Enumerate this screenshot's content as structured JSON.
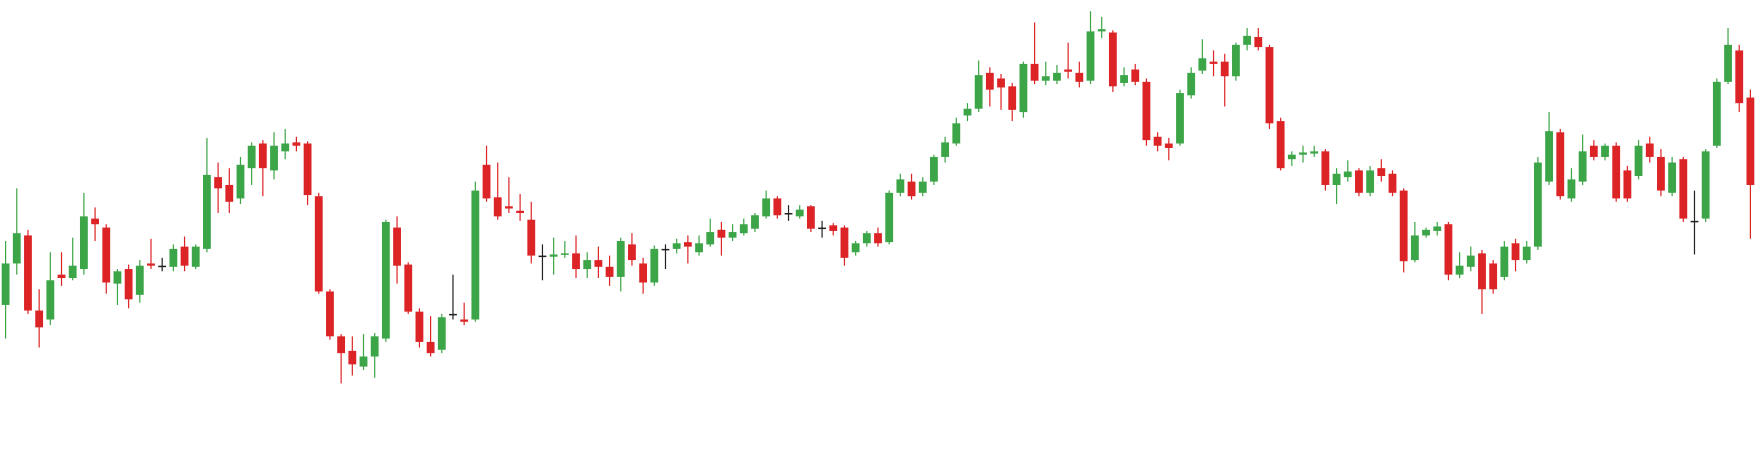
{
  "chart_data": {
    "type": "candlestick",
    "ylim": [
      0,
      413
    ],
    "up_color": "#3ca547",
    "down_color": "#dc2427",
    "doji_color": "#222222",
    "open": [
      141,
      178,
      203,
      136,
      128,
      168,
      165,
      173,
      218,
      210,
      160,
      173,
      150,
      178,
      176,
      175,
      193,
      175,
      191,
      255,
      248,
      236,
      263,
      285,
      261,
      278,
      286,
      285,
      238,
      153,
      113,
      100,
      86,
      95,
      111,
      210,
      177,
      135,
      108,
      101,
      133,
      128,
      128,
      266,
      237,
      229,
      225,
      217,
      185,
      184,
      186,
      187,
      173,
      181,
      175,
      166,
      195,
      178,
      161,
      191,
      191,
      197,
      188,
      195,
      208,
      201,
      205,
      209,
      220,
      236,
      223,
      220,
      229,
      210,
      212,
      210,
      188,
      196,
      205,
      197,
      241,
      251,
      241,
      251,
      273,
      285,
      310,
      316,
      348,
      343,
      336,
      313,
      356,
      341,
      341,
      351,
      348,
      341,
      385,
      384,
      339,
      351,
      340,
      291,
      285,
      285,
      328,
      350,
      358,
      358,
      345,
      373,
      380,
      371,
      305,
      271,
      275,
      276,
      278,
      248,
      255,
      261,
      241,
      263,
      258,
      243,
      181,
      203,
      207,
      213,
      168,
      175,
      187,
      178,
      166,
      196,
      181,
      193,
      251,
      295,
      236,
      251,
      283,
      273,
      283,
      261,
      256,
      285,
      273,
      241,
      271,
      216,
      218,
      283,
      340,
      368,
      326
    ],
    "high": [
      198,
      245,
      208,
      155,
      188,
      188,
      201,
      241,
      228,
      213,
      173,
      177,
      181,
      200,
      183,
      195,
      202,
      195,
      290,
      268,
      263,
      273,
      286,
      288,
      295,
      298,
      291,
      287,
      241,
      155,
      115,
      113,
      115,
      116,
      217,
      220,
      179,
      138,
      131,
      133,
      168,
      143,
      251,
      283,
      268,
      255,
      240,
      233,
      195,
      201,
      198,
      203,
      188,
      193,
      185,
      201,
      205,
      183,
      194,
      195,
      200,
      203,
      203,
      218,
      215,
      213,
      218,
      223,
      243,
      238,
      230,
      230,
      230,
      216,
      214,
      212,
      198,
      207,
      210,
      243,
      258,
      258,
      255,
      275,
      291,
      308,
      321,
      359,
      353,
      347,
      339,
      358,
      393,
      358,
      355,
      375,
      358,
      403,
      398,
      386,
      353,
      356,
      343,
      295,
      290,
      333,
      353,
      378,
      368,
      365,
      375,
      388,
      388,
      373,
      308,
      278,
      283,
      283,
      280,
      263,
      270,
      263,
      265,
      271,
      261,
      245,
      215,
      210,
      215,
      215,
      188,
      193,
      190,
      181,
      198,
      200,
      198,
      273,
      313,
      298,
      263,
      293,
      288,
      285,
      286,
      265,
      288,
      291,
      280,
      273,
      273,
      243,
      280,
      343,
      388,
      373,
      333
    ],
    "low": [
      111,
      168,
      133,
      103,
      123,
      158,
      163,
      168,
      198,
      151,
      141,
      138,
      143,
      173,
      171,
      171,
      171,
      173,
      188,
      223,
      223,
      231,
      248,
      238,
      253,
      271,
      278,
      230,
      151,
      110,
      71,
      78,
      83,
      76,
      108,
      160,
      133,
      103,
      95,
      98,
      128,
      123,
      126,
      233,
      217,
      223,
      216,
      178,
      163,
      168,
      183,
      165,
      165,
      165,
      158,
      153,
      176,
      151,
      158,
      173,
      187,
      178,
      185,
      193,
      185,
      198,
      203,
      206,
      218,
      218,
      216,
      218,
      206,
      201,
      203,
      176,
      185,
      193,
      193,
      195,
      238,
      235,
      238,
      248,
      268,
      283,
      305,
      313,
      318,
      315,
      305,
      308,
      338,
      337,
      338,
      343,
      335,
      338,
      379,
      331,
      336,
      337,
      283,
      278,
      270,
      283,
      325,
      347,
      345,
      318,
      341,
      368,
      368,
      298,
      261,
      265,
      268,
      273,
      243,
      231,
      251,
      238,
      238,
      251,
      238,
      170,
      179,
      201,
      203,
      163,
      165,
      171,
      133,
      151,
      163,
      171,
      178,
      190,
      248,
      235,
      233,
      248,
      270,
      270,
      233,
      233,
      253,
      268,
      238,
      238,
      215,
      186,
      215,
      281,
      338,
      313,
      200
    ],
    "close": [
      178,
      205,
      136,
      121,
      163,
      165,
      176,
      220,
      213,
      161,
      171,
      146,
      176,
      176,
      176,
      191,
      176,
      193,
      257,
      245,
      233,
      266,
      283,
      263,
      283,
      285,
      283,
      239,
      153,
      113,
      98,
      88,
      95,
      113,
      215,
      176,
      135,
      108,
      98,
      130,
      133,
      126,
      243,
      236,
      220,
      227,
      223,
      185,
      185,
      186,
      187,
      173,
      181,
      175,
      166,
      198,
      181,
      161,
      191,
      191,
      196,
      193,
      196,
      206,
      201,
      206,
      213,
      221,
      236,
      221,
      223,
      226,
      209,
      210,
      207,
      183,
      196,
      205,
      196,
      241,
      253,
      238,
      251,
      273,
      286,
      303,
      316,
      346,
      333,
      335,
      315,
      356,
      341,
      345,
      348,
      349,
      340,
      385,
      387,
      336,
      346,
      340,
      288,
      283,
      281,
      330,
      348,
      361,
      356,
      345,
      373,
      381,
      371,
      303,
      263,
      275,
      277,
      278,
      248,
      258,
      260,
      241,
      261,
      256,
      241,
      180,
      203,
      208,
      211,
      168,
      176,
      185,
      155,
      155,
      193,
      181,
      193,
      268,
      296,
      238,
      253,
      278,
      273,
      283,
      236,
      236,
      283,
      273,
      243,
      268,
      218,
      216,
      278,
      340,
      373,
      321,
      248
    ]
  }
}
